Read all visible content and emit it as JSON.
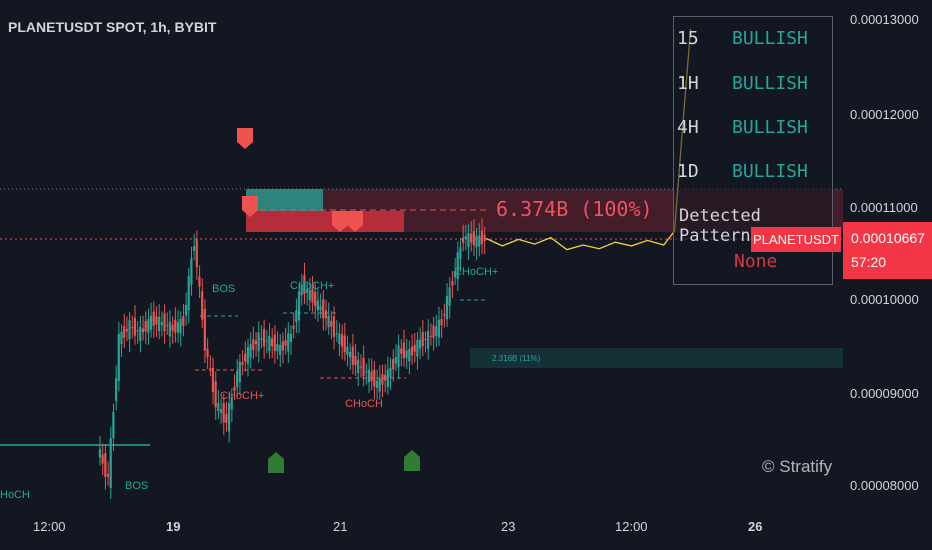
{
  "symbol_title": "PLANETUSDT SPOT, 1h, BYBIT",
  "watermark": "© Stratify",
  "panel": {
    "rows": [
      {
        "tf": "15",
        "status": "BULLISH"
      },
      {
        "tf": "1H",
        "status": "BULLISH"
      },
      {
        "tf": "4H",
        "status": "BULLISH"
      },
      {
        "tf": "1D",
        "status": "BULLISH"
      }
    ],
    "pattern_label": "Detected Pattern",
    "pattern_value": "None"
  },
  "price": {
    "symbol_badge": "PLANETUSDT",
    "current": "0.00010667",
    "countdown": "57:20"
  },
  "colors": {
    "bull": "#26a69a",
    "bear": "#ef5350",
    "projection": "#f7d23e",
    "background": "#131722"
  },
  "annotations": {
    "supply_volume": "6.374B (100%)",
    "demand_volume": "2.316B (11%)",
    "labels": [
      {
        "text": "BOS",
        "color": "green"
      },
      {
        "text": "CHoCH+",
        "color": "green"
      },
      {
        "text": "CHoCH+",
        "color": "green"
      },
      {
        "text": "CHoCH+",
        "color": "red"
      },
      {
        "text": "CHoCH",
        "color": "red"
      },
      {
        "text": "BOS",
        "color": "green"
      },
      {
        "text": "HoCH",
        "color": "green"
      }
    ]
  },
  "chart_data": {
    "type": "candlestick",
    "title": "PLANETUSDT SPOT, 1h, BYBIT",
    "y_ticks": [
      "0.00013000",
      "0.00012000",
      "0.00011000",
      "0.00010000",
      "0.00009000",
      "0.00008000"
    ],
    "x_ticks": [
      "12:00",
      "19",
      "21",
      "23",
      "12:00",
      "26"
    ],
    "ylim": [
      7.95e-05,
      0.0001315
    ],
    "series": [
      {
        "name": "price",
        "x": [
          0,
          4,
          8,
          12,
          16,
          20,
          24,
          28,
          32,
          36,
          40,
          44,
          48,
          52,
          56,
          60,
          64,
          68,
          72,
          76,
          80,
          84,
          88,
          92,
          96,
          100,
          104,
          108,
          112,
          116,
          120,
          124,
          128,
          132,
          136,
          140,
          144,
          148,
          152,
          156,
          160,
          164,
          168,
          172,
          176,
          180
        ],
        "y": [
          8.44e-05,
          8.44e-05,
          8.44e-05,
          8.44e-05,
          8.44e-05,
          8.44e-05,
          8.44e-05,
          8.44e-05,
          8.44e-05,
          8.44e-05,
          8.1e-05,
          9.62e-05,
          9.75e-05,
          9.68e-05,
          9.82e-05,
          9.78e-05,
          9.72e-05,
          9.8e-05,
          0.0001068,
          9.55e-05,
          8.92e-05,
          8.72e-05,
          9.25e-05,
          9.48e-05,
          9.62e-05,
          9.58e-05,
          9.5e-05,
          9.65e-05,
          0.000102,
          0.0001005,
          9.9e-05,
          9.7e-05,
          9.52e-05,
          9.35e-05,
          9.25e-05,
          9.12e-05,
          9.22e-05,
          9.48e-05,
          9.45e-05,
          9.58e-05,
          9.65e-05,
          9.8e-05,
          0.0001025,
          0.0001072,
          0.0001068,
          0.000107
        ]
      },
      {
        "name": "projection",
        "x": [
          180,
          186,
          192,
          198,
          204,
          210,
          216,
          222,
          228,
          234,
          240,
          246,
          250,
          253,
          256
        ],
        "y": [
          0.000107,
          0.0001062,
          0.0001069,
          0.0001064,
          0.0001071,
          0.0001058,
          0.0001063,
          0.0001059,
          0.0001066,
          0.0001062,
          0.0001068,
          0.0001063,
          0.0001078,
          0.000119,
          0.0001297
        ]
      }
    ]
  }
}
